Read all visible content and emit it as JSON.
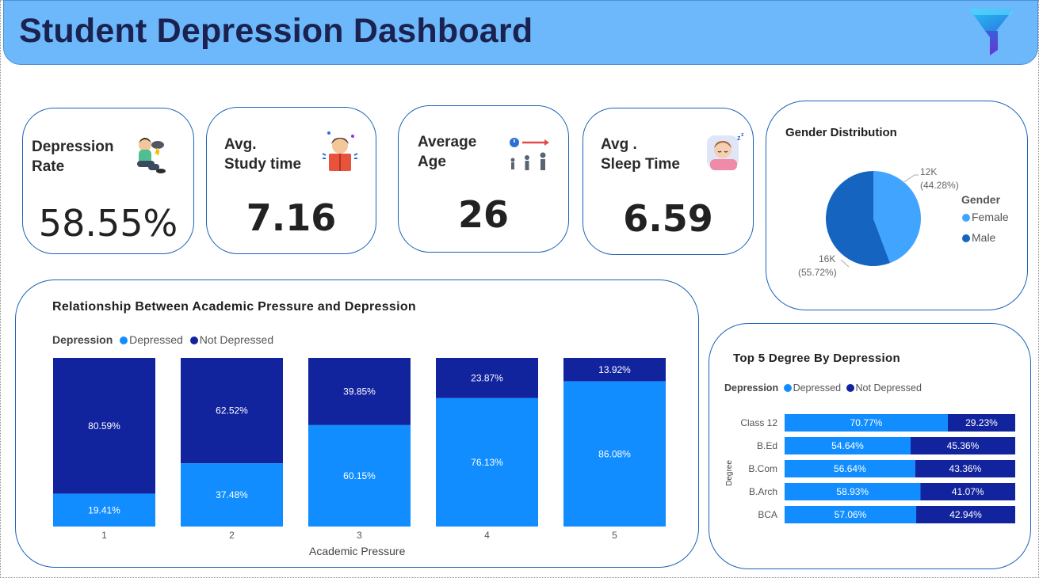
{
  "header": {
    "title": "Student Depression Dashboard"
  },
  "colors": {
    "depressed": "#118dff",
    "not_depressed": "#12239e",
    "female": "#41a4ff",
    "male": "#1464c0"
  },
  "kpis": {
    "depression_rate": {
      "label": "Depression\nRate",
      "value": "58.55%",
      "icon": "depressed-person-icon"
    },
    "study_time": {
      "label": "Avg.\nStudy time",
      "value": "7.16",
      "icon": "student-reading-icon"
    },
    "age": {
      "label": "Average\nAge",
      "value": "26",
      "icon": "age-progression-icon"
    },
    "sleep_time": {
      "label": "Avg .\nSleep Time",
      "value": "6.59",
      "icon": "sleeping-person-icon"
    }
  },
  "gender": {
    "title": "Gender Distribution",
    "legend_title": "Gender",
    "female_label": "Female",
    "male_label": "Male",
    "female_value": "12K",
    "female_pct": "(44.28%)",
    "male_value": "16K",
    "male_pct": "(55.72%)"
  },
  "pressure": {
    "title": "Relationship Between Academic Pressure and Depression",
    "legend_title": "Depression",
    "legend_depressed": "Depressed",
    "legend_not_depressed": "Not Depressed",
    "xlabel": "Academic Pressure"
  },
  "degree": {
    "title": "Top 5 Degree By Depression",
    "legend_title": "Depression",
    "legend_depressed": "Depressed",
    "legend_not_depressed": "Not Depressed",
    "ylabel": "Degree"
  },
  "chart_data": [
    {
      "type": "pie",
      "title": "Gender Distribution",
      "categories": [
        "Female",
        "Male"
      ],
      "values": [
        44.28,
        55.72
      ],
      "labels": [
        "12K (44.28%)",
        "16K (55.72%)"
      ],
      "legend": "right"
    },
    {
      "type": "bar",
      "stacked": "100%",
      "title": "Relationship Between Academic Pressure and Depression",
      "xlabel": "Academic Pressure",
      "categories": [
        "1",
        "2",
        "3",
        "4",
        "5"
      ],
      "series": [
        {
          "name": "Depressed",
          "values": [
            19.41,
            37.48,
            60.15,
            76.13,
            86.08
          ]
        },
        {
          "name": "Not Depressed",
          "values": [
            80.59,
            62.52,
            39.85,
            23.87,
            13.92
          ]
        }
      ],
      "legend": "top-left"
    },
    {
      "type": "bar",
      "orientation": "horizontal",
      "stacked": "100%",
      "title": "Top 5 Degree By Depression",
      "ylabel": "Degree",
      "categories": [
        "Class 12",
        "B.Ed",
        "B.Com",
        "B.Arch",
        "BCA"
      ],
      "series": [
        {
          "name": "Depressed",
          "values": [
            70.77,
            54.64,
            56.64,
            58.93,
            57.06
          ]
        },
        {
          "name": "Not Depressed",
          "values": [
            29.23,
            45.36,
            43.36,
            41.07,
            42.94
          ]
        }
      ],
      "legend": "top-left"
    }
  ]
}
